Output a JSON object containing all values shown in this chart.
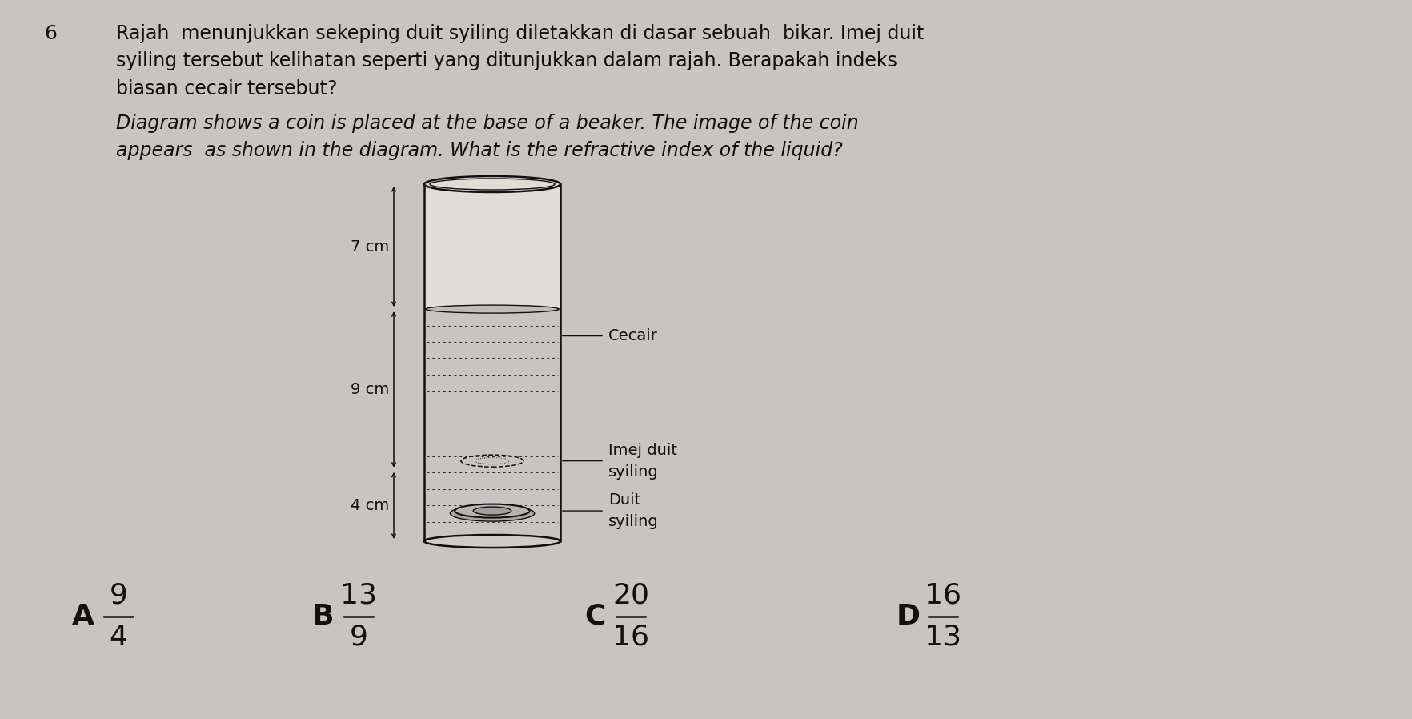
{
  "background_color": "#c8c4be",
  "question_number": "6",
  "question_text_malay": "Rajah  menunjukkan sekeping duit syiling diletakkan di dasar sebuah  bikar. Imej duit\nsyiling tersebut kelihatan seperti yang ditunjukkan dalam rajah. Berapakah indeks\nbiasan cecair tersebut?",
  "question_text_english": "Diagram shows a coin is placed at the base of a beaker. The image of the coin\nappears  as shown in the diagram. What is the refractive index of the liquid?",
  "label_7cm": "7 cm",
  "label_9cm": "9 cm",
  "label_4cm": "4 cm",
  "label_cecair": "Cecair",
  "label_imej_line1": "Imej duit",
  "label_imej_line2": "syiling",
  "label_duit_line1": "Duit",
  "label_duit_line2": "syiling",
  "options": [
    {
      "letter": "A",
      "numerator": "9",
      "denominator": "4"
    },
    {
      "letter": "B",
      "numerator": "13",
      "denominator": "9"
    },
    {
      "letter": "C",
      "numerator": "20",
      "denominator": "16"
    },
    {
      "letter": "D",
      "numerator": "16",
      "denominator": "13"
    }
  ],
  "text_color": "#111111",
  "diagram_color": "#111111",
  "font_size_question": 17,
  "font_size_options": 26,
  "font_size_labels": 14,
  "font_size_dim": 14
}
